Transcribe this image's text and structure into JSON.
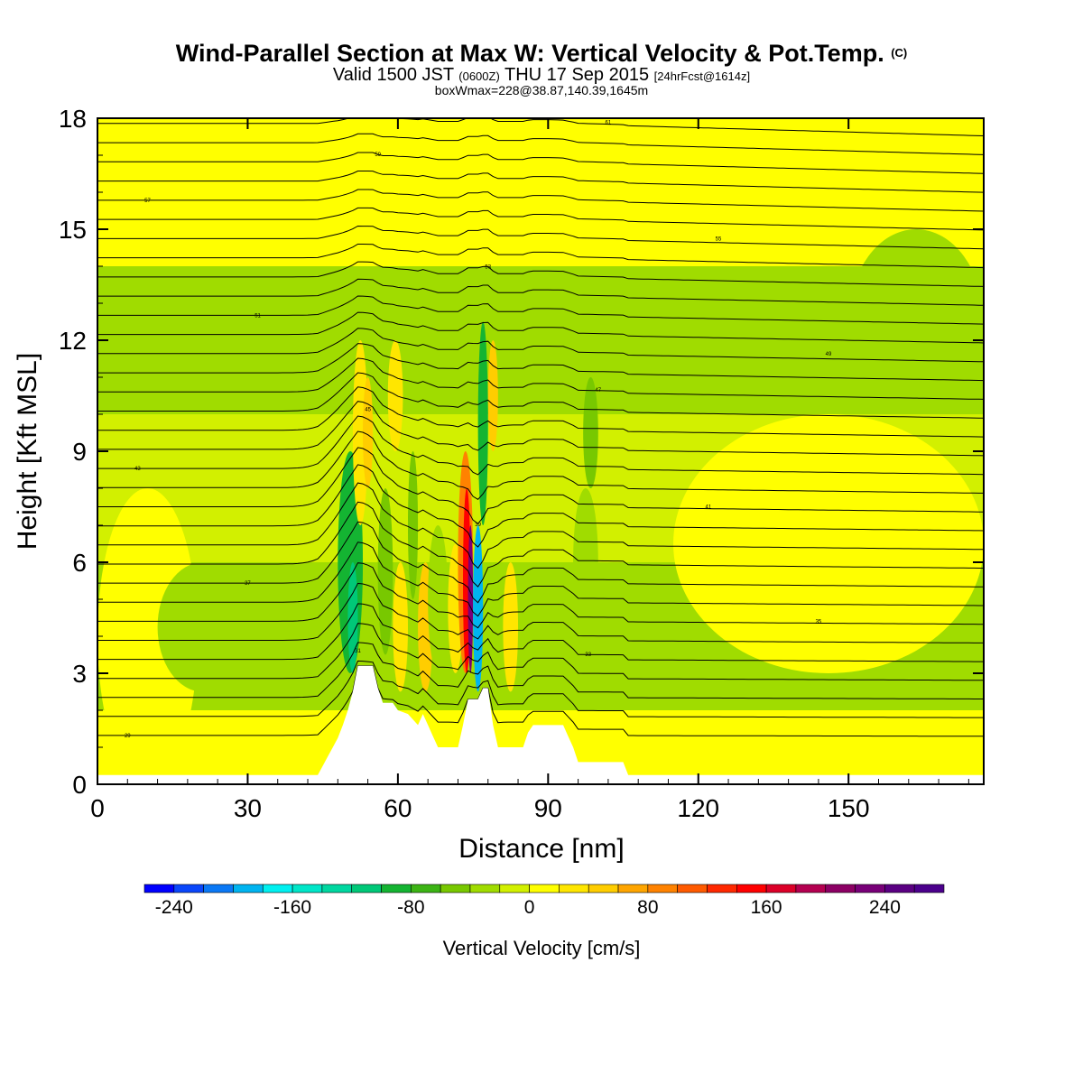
{
  "chart_data": {
    "type": "heatmap",
    "title": "Wind-Parallel Section at Max W: Vertical Velocity & Pot.Temp.",
    "title_mark": "(C)",
    "subtitle": {
      "valid_pre": "Valid 1500 JST",
      "valid_utc": "(0600Z)",
      "valid_post": "THU 17 Sep 2015",
      "fcst": "[24hrFcst@1614z]"
    },
    "subtitle2": "boxWmax=228@38.87,140.39,1645m",
    "xlabel": "Distance [nm]",
    "ylabel": "Height [Kft MSL]",
    "xlim": [
      0,
      177
    ],
    "ylim": [
      0,
      18
    ],
    "xticks": [
      0,
      30,
      60,
      90,
      120,
      150
    ],
    "yticks": [
      0,
      3,
      6,
      9,
      12,
      15,
      18
    ],
    "colorbar": {
      "label": "Vertical Velocity [cm/s]",
      "ticks": [
        -240,
        -160,
        -80,
        0,
        80,
        160,
        240
      ],
      "range": [
        -260,
        280
      ],
      "bin_width": 20,
      "colors": [
        "#0000ff",
        "#0a46fa",
        "#0a78f5",
        "#00b4f0",
        "#00f0f0",
        "#00e6c8",
        "#00d7a0",
        "#00c878",
        "#14b432",
        "#3cb414",
        "#78c800",
        "#a0dc00",
        "#d2f000",
        "#ffff00",
        "#ffe600",
        "#ffcd00",
        "#ffa500",
        "#ff8200",
        "#ff5a00",
        "#ff2800",
        "#ff0000",
        "#dc0028",
        "#b40050",
        "#8c0064",
        "#780078",
        "#5a0082",
        "#4b008c"
      ]
    },
    "terrain": [
      [
        0,
        0.25
      ],
      [
        44,
        0.25
      ],
      [
        45,
        0.5
      ],
      [
        46,
        0.75
      ],
      [
        47,
        1
      ],
      [
        48,
        1.25
      ],
      [
        49,
        1.6
      ],
      [
        50,
        2
      ],
      [
        51,
        2.5
      ],
      [
        52,
        3.2
      ],
      [
        55,
        3.2
      ],
      [
        56,
        2.6
      ],
      [
        57,
        2.2
      ],
      [
        59,
        2.2
      ],
      [
        60,
        2
      ],
      [
        62,
        1.9
      ],
      [
        64,
        1.6
      ],
      [
        65,
        1.9
      ],
      [
        66,
        1.6
      ],
      [
        67,
        1.3
      ],
      [
        68,
        1
      ],
      [
        72,
        1
      ],
      [
        73,
        1.6
      ],
      [
        74,
        2.3
      ],
      [
        76,
        2.3
      ],
      [
        77,
        2.6
      ],
      [
        78,
        2.6
      ],
      [
        79,
        1.6
      ],
      [
        80,
        1
      ],
      [
        85,
        1
      ],
      [
        86,
        1.4
      ],
      [
        87,
        1.6
      ],
      [
        93,
        1.6
      ],
      [
        94,
        1.3
      ],
      [
        95,
        1
      ],
      [
        96,
        0.6
      ],
      [
        105,
        0.6
      ],
      [
        106,
        0.25
      ],
      [
        177,
        0.25
      ]
    ],
    "background_w": [
      {
        "z": [
          0,
          2
        ],
        "w": 5
      },
      {
        "z": [
          2,
          6
        ],
        "w": -25
      },
      {
        "z": [
          6,
          10
        ],
        "w": -15
      },
      {
        "z": [
          10,
          14
        ],
        "w": -25
      },
      {
        "z": [
          14,
          18
        ],
        "w": 5
      }
    ],
    "w_cells": [
      {
        "x": [
          0,
          20
        ],
        "z": [
          0,
          8
        ],
        "w": 5
      },
      {
        "x": [
          12,
          30
        ],
        "z": [
          2.5,
          6
        ],
        "w": -25
      },
      {
        "x": [
          150,
          177
        ],
        "z": [
          10,
          15
        ],
        "w": -25
      },
      {
        "x": [
          130,
          177
        ],
        "z": [
          15,
          18
        ],
        "w": 8
      },
      {
        "x": [
          115,
          177
        ],
        "z": [
          3,
          10
        ],
        "w": 5
      },
      {
        "x": [
          48,
          53
        ],
        "z": [
          3,
          9
        ],
        "w": -90
      },
      {
        "x": [
          50,
          52
        ],
        "z": [
          3,
          6
        ],
        "w": -120
      },
      {
        "x": [
          51,
          54
        ],
        "z": [
          7,
          12
        ],
        "w": 20
      },
      {
        "x": [
          53,
          55
        ],
        "z": [
          8,
          11
        ],
        "w": 40
      },
      {
        "x": [
          56,
          59
        ],
        "z": [
          3.5,
          8
        ],
        "w": -60
      },
      {
        "x": [
          58,
          61
        ],
        "z": [
          9,
          12
        ],
        "w": 20
      },
      {
        "x": [
          59,
          62
        ],
        "z": [
          2.5,
          6
        ],
        "w": 30
      },
      {
        "x": [
          62,
          64
        ],
        "z": [
          5,
          9
        ],
        "w": -60
      },
      {
        "x": [
          64,
          67
        ],
        "z": [
          2.5,
          6
        ],
        "w": 40
      },
      {
        "x": [
          66,
          70
        ],
        "z": [
          3,
          7
        ],
        "w": -40
      },
      {
        "x": [
          70,
          73
        ],
        "z": [
          3,
          6.5
        ],
        "w": 30
      },
      {
        "x": [
          72,
          75
        ],
        "z": [
          3,
          9
        ],
        "w": 80
      },
      {
        "x": [
          73,
          74.5
        ],
        "z": [
          3,
          8
        ],
        "w": 150
      },
      {
        "x": [
          74,
          75
        ],
        "z": [
          3,
          7
        ],
        "w": 230
      },
      {
        "x": [
          75,
          77
        ],
        "z": [
          2.5,
          7
        ],
        "w": -200
      },
      {
        "x": [
          76,
          78
        ],
        "z": [
          7,
          12.5
        ],
        "w": -90
      },
      {
        "x": [
          78,
          80
        ],
        "z": [
          9,
          12
        ],
        "w": 40
      },
      {
        "x": [
          81,
          84
        ],
        "z": [
          2.5,
          6
        ],
        "w": 20
      },
      {
        "x": [
          95,
          100
        ],
        "z": [
          4,
          8
        ],
        "w": -30
      },
      {
        "x": [
          97,
          100
        ],
        "z": [
          8,
          11
        ],
        "w": -45
      }
    ],
    "theta_contours": {
      "levels": [
        29,
        30,
        31,
        32,
        33,
        34,
        35,
        36,
        37,
        38,
        39,
        40,
        41,
        42,
        43,
        44,
        45,
        46,
        47,
        48,
        49,
        50,
        51,
        52,
        53,
        54,
        55,
        56,
        57,
        58,
        59,
        60,
        61
      ],
      "label_step": 2
    }
  }
}
